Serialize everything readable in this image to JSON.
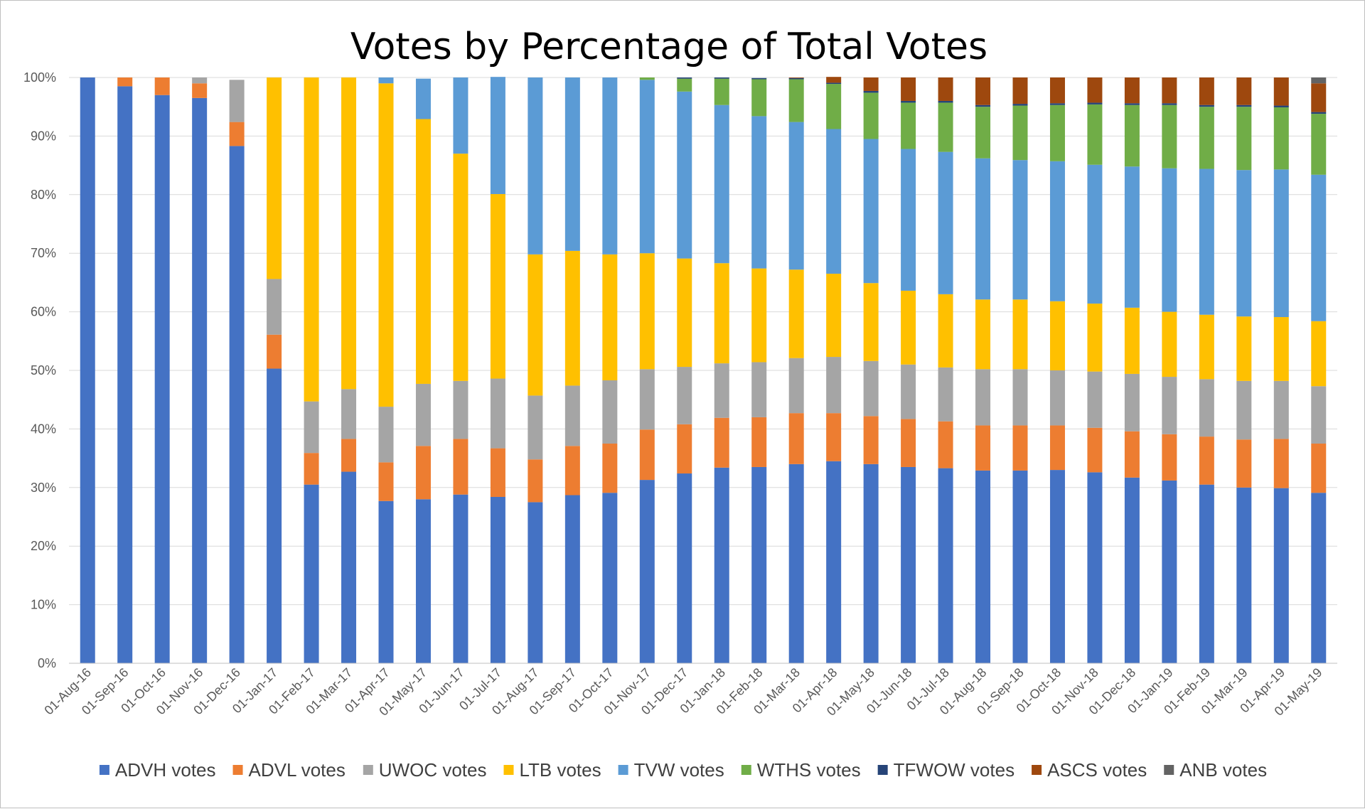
{
  "chart_data": {
    "type": "bar",
    "stacked": "percent",
    "title": "Votes by Percentage of Total Votes",
    "xlabel": "",
    "ylabel": "",
    "ylim": [
      0,
      100
    ],
    "y_ticks": [
      "0%",
      "10%",
      "20%",
      "30%",
      "40%",
      "50%",
      "60%",
      "70%",
      "80%",
      "90%",
      "100%"
    ],
    "grid": "horizontal",
    "legend_position": "bottom",
    "categories": [
      "01-Aug-16",
      "01-Sep-16",
      "01-Oct-16",
      "01-Nov-16",
      "01-Dec-16",
      "01-Jan-17",
      "01-Feb-17",
      "01-Mar-17",
      "01-Apr-17",
      "01-May-17",
      "01-Jun-17",
      "01-Jul-17",
      "01-Aug-17",
      "01-Sep-17",
      "01-Oct-17",
      "01-Nov-17",
      "01-Dec-17",
      "01-Jan-18",
      "01-Feb-18",
      "01-Mar-18",
      "01-Apr-18",
      "01-May-18",
      "01-Jun-18",
      "01-Jul-18",
      "01-Aug-18",
      "01-Sep-18",
      "01-Oct-18",
      "01-Nov-18",
      "01-Dec-18",
      "01-Jan-19",
      "01-Feb-19",
      "01-Mar-19",
      "01-Apr-19",
      "01-May-19"
    ],
    "series": [
      {
        "name": "ADVH votes",
        "color": "#4472C4",
        "values": [
          100,
          98.5,
          97,
          96.5,
          88.3,
          50.3,
          30.5,
          32.7,
          27.7,
          28,
          28.8,
          28.4,
          27.5,
          28.7,
          29.1,
          31.3,
          32.4,
          33.4,
          33.5,
          34,
          34.5,
          34,
          33.5,
          33.3,
          32.9,
          32.9,
          33,
          32.6,
          31.7,
          31.2,
          30.5,
          30,
          29.9,
          29.1
        ]
      },
      {
        "name": "ADVL votes",
        "color": "#ED7D31",
        "values": [
          0,
          1.5,
          3,
          2.5,
          4.1,
          5.8,
          5.4,
          5.6,
          6.6,
          9.1,
          9.5,
          8.3,
          7.3,
          8.4,
          8.4,
          8.6,
          8.4,
          8.5,
          8.5,
          8.7,
          8.2,
          8.2,
          8.2,
          8,
          7.7,
          7.7,
          7.6,
          7.6,
          7.9,
          7.9,
          8.2,
          8.2,
          8.4,
          8.4
        ]
      },
      {
        "name": "UWOC votes",
        "color": "#A5A5A5",
        "values": [
          0,
          0,
          0,
          1,
          7.2,
          9.5,
          8.8,
          8.5,
          9.5,
          10.6,
          9.9,
          11.9,
          10.9,
          10.3,
          10.8,
          10.3,
          9.8,
          9.3,
          9.4,
          9.4,
          9.6,
          9.4,
          9.3,
          9.2,
          9.6,
          9.6,
          9.4,
          9.6,
          9.8,
          9.8,
          9.8,
          10,
          9.9,
          9.8
        ]
      },
      {
        "name": "LTB votes",
        "color": "#FFC000",
        "values": [
          0,
          0,
          0,
          0,
          0,
          34.4,
          55.3,
          53.2,
          55.2,
          45.2,
          38.8,
          31.5,
          24.1,
          23,
          21.5,
          19.8,
          18.5,
          17.1,
          16,
          15.1,
          14.2,
          13.3,
          12.6,
          12.5,
          11.9,
          11.9,
          11.8,
          11.6,
          11.3,
          11.1,
          11,
          11,
          10.9,
          11.1
        ]
      },
      {
        "name": "TVW votes",
        "color": "#5B9BD5",
        "values": [
          0,
          0,
          0,
          0,
          0,
          0,
          0,
          0,
          1,
          6.9,
          13,
          20,
          30.2,
          29.6,
          30.2,
          29.6,
          28.5,
          27,
          26,
          25.2,
          24.7,
          24.6,
          24.2,
          24.3,
          24.1,
          23.8,
          23.9,
          23.7,
          24.1,
          24.5,
          24.9,
          25,
          25.2,
          25
        ]
      },
      {
        "name": "WTHS votes",
        "color": "#70AD47",
        "values": [
          0,
          0,
          0,
          0,
          0,
          0,
          0,
          0,
          0,
          0,
          0,
          0,
          0,
          0,
          0,
          0.4,
          2.2,
          4.5,
          6.3,
          7.3,
          7.7,
          7.9,
          7.9,
          8.4,
          8.8,
          9.3,
          9.6,
          10.3,
          10.5,
          10.8,
          10.6,
          10.8,
          10.6,
          10.4
        ]
      },
      {
        "name": "TFWOW votes",
        "color": "#264478",
        "values": [
          0,
          0,
          0,
          0,
          0,
          0,
          0,
          0,
          0,
          0,
          0,
          0,
          0,
          0,
          0,
          0,
          0.2,
          0.2,
          0.2,
          0.2,
          0.2,
          0.3,
          0.3,
          0.3,
          0.3,
          0.3,
          0.3,
          0.3,
          0.3,
          0.3,
          0.3,
          0.3,
          0.3,
          0.3
        ]
      },
      {
        "name": "ASCS votes",
        "color": "#9E480E",
        "values": [
          0,
          0,
          0,
          0,
          0,
          0,
          0,
          0,
          0,
          0,
          0,
          0,
          0,
          0,
          0,
          0,
          0,
          0,
          0,
          0.1,
          1,
          2.3,
          4,
          4,
          4.7,
          4.5,
          4.4,
          4.3,
          4.4,
          4.4,
          4.7,
          4.7,
          4.8,
          4.9
        ]
      },
      {
        "name": "ANB votes",
        "color": "#636363",
        "values": [
          0,
          0,
          0,
          0,
          0,
          0,
          0,
          0,
          0,
          0,
          0,
          0,
          0,
          0,
          0,
          0,
          0,
          0,
          0,
          0,
          0,
          0,
          0,
          0,
          0,
          0,
          0,
          0,
          0,
          0,
          0,
          0,
          0,
          1
        ]
      }
    ]
  }
}
